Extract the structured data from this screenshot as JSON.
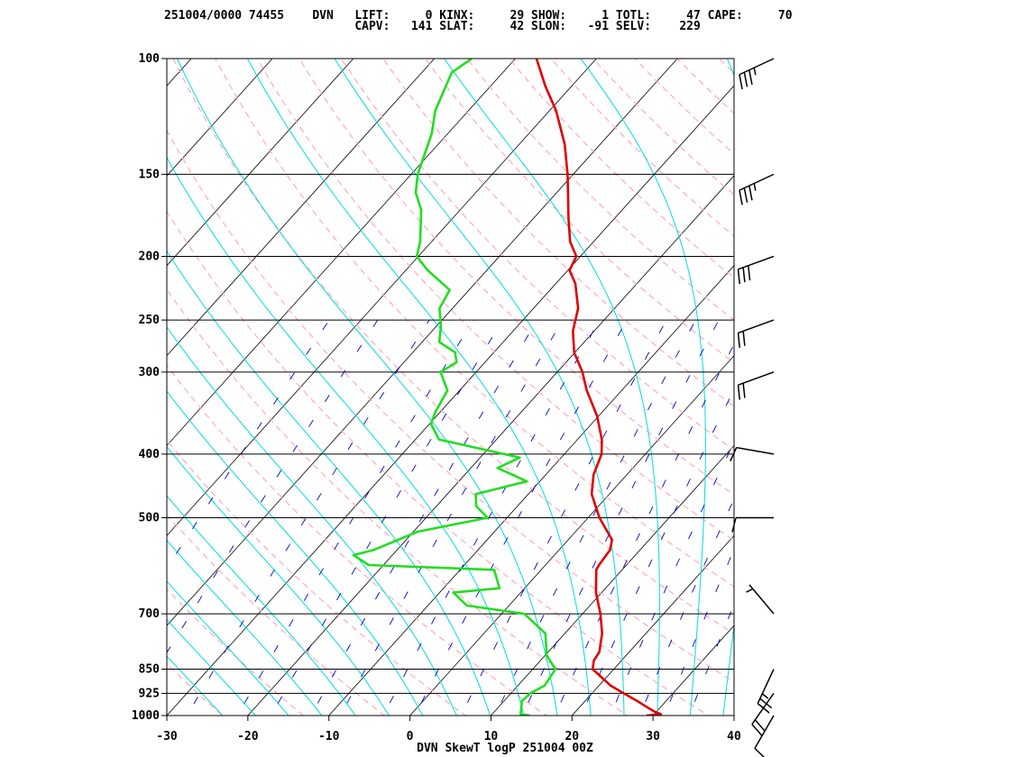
{
  "header": {
    "line1": "251004/0000 74455    DVN   LIFT:     0 KINX:     29 SHOW:     1 TOTL:     47 CAPE:     70",
    "line2": "                           CAPV:   141 SLAT:     42 SLON:   -91 SELV:    229"
  },
  "chart_data": {
    "type": "skewt-logp",
    "title": "DVN SkewT logP 251004 00Z",
    "xlabel": "",
    "ylabel": "",
    "xlim": [
      -30,
      40
    ],
    "ylim": [
      1000,
      100
    ],
    "y_scale": "log",
    "x_ticks": [
      "-30",
      "-20",
      "-10",
      "0",
      "10",
      "20",
      "30",
      "40"
    ],
    "x_tick_values": [
      -30,
      -20,
      -10,
      0,
      10,
      20,
      30,
      40
    ],
    "pressure_levels": [
      "100",
      "150",
      "200",
      "250",
      "300",
      "400",
      "500",
      "700",
      "850",
      "925",
      "1000"
    ],
    "pressure_values": [
      100,
      150,
      200,
      250,
      300,
      400,
      500,
      700,
      850,
      925,
      1000
    ],
    "colors": {
      "temperature": "#e00000",
      "dewpoint": "#22dd22",
      "isotherm": "#000000",
      "dry_adiabat": "#ffb0bf",
      "moist_adiabat": "#00dddd",
      "mixing_ratio": "#0000cc"
    },
    "series": [
      {
        "name": "temperature",
        "points": [
          [
            1000,
            29.2
          ],
          [
            995,
            30.8
          ],
          [
            985,
            29.6
          ],
          [
            950,
            26.4
          ],
          [
            925,
            23.9
          ],
          [
            900,
            21.4
          ],
          [
            850,
            17.4
          ],
          [
            825,
            16.6
          ],
          [
            800,
            16.3
          ],
          [
            750,
            14.6
          ],
          [
            700,
            12.2
          ],
          [
            650,
            9.3
          ],
          [
            600,
            6.8
          ],
          [
            590,
            6.6
          ],
          [
            560,
            6.3
          ],
          [
            540,
            5.4
          ],
          [
            500,
            1.4
          ],
          [
            460,
            -2.2
          ],
          [
            430,
            -4.1
          ],
          [
            400,
            -5.4
          ],
          [
            380,
            -7.0
          ],
          [
            350,
            -10.2
          ],
          [
            320,
            -14.3
          ],
          [
            300,
            -16.9
          ],
          [
            280,
            -20.1
          ],
          [
            260,
            -22.6
          ],
          [
            240,
            -24.5
          ],
          [
            220,
            -27.6
          ],
          [
            210,
            -29.8
          ],
          [
            200,
            -30.5
          ],
          [
            190,
            -32.9
          ],
          [
            175,
            -35.7
          ],
          [
            160,
            -38.6
          ],
          [
            150,
            -40.7
          ],
          [
            135,
            -44.4
          ],
          [
            120,
            -49.2
          ],
          [
            110,
            -53.3
          ],
          [
            100,
            -57.4
          ]
        ]
      },
      {
        "name": "dewpoint",
        "points": [
          [
            1000,
            14.8
          ],
          [
            995,
            13.5
          ],
          [
            950,
            12.2
          ],
          [
            925,
            12.4
          ],
          [
            900,
            13.3
          ],
          [
            850,
            12.8
          ],
          [
            810,
            10.2
          ],
          [
            750,
            7.6
          ],
          [
            700,
            2.8
          ],
          [
            680,
            -5.2
          ],
          [
            650,
            -8.3
          ],
          [
            640,
            -3.1
          ],
          [
            600,
            -5.8
          ],
          [
            590,
            -21.8
          ],
          [
            570,
            -24.8
          ],
          [
            560,
            -22.9
          ],
          [
            525,
            -19.5
          ],
          [
            500,
            -12.4
          ],
          [
            480,
            -15.1
          ],
          [
            460,
            -16.5
          ],
          [
            440,
            -11.6
          ],
          [
            420,
            -16.7
          ],
          [
            405,
            -15.1
          ],
          [
            380,
            -27.1
          ],
          [
            360,
            -29.8
          ],
          [
            345,
            -30.6
          ],
          [
            320,
            -31.5
          ],
          [
            300,
            -34.4
          ],
          [
            290,
            -33.5
          ],
          [
            280,
            -34.8
          ],
          [
            270,
            -37.9
          ],
          [
            255,
            -39.5
          ],
          [
            240,
            -41.6
          ],
          [
            225,
            -42.4
          ],
          [
            210,
            -47.3
          ],
          [
            200,
            -50.2
          ],
          [
            190,
            -51.4
          ],
          [
            170,
            -54.8
          ],
          [
            160,
            -57.4
          ],
          [
            150,
            -59.2
          ],
          [
            130,
            -62.0
          ],
          [
            120,
            -64.1
          ],
          [
            105,
            -66.3
          ],
          [
            100,
            -65.4
          ]
        ]
      }
    ],
    "winds": [
      {
        "p": 1000,
        "dir": 210,
        "spd": 10
      },
      {
        "p": 925,
        "dir": 215,
        "spd": 20
      },
      {
        "p": 850,
        "dir": 205,
        "spd": 25
      },
      {
        "p": 700,
        "dir": 320,
        "spd": 5
      },
      {
        "p": 500,
        "dir": 270,
        "spd": 10
      },
      {
        "p": 400,
        "dir": 280,
        "spd": 10
      },
      {
        "p": 300,
        "dir": 250,
        "spd": 20
      },
      {
        "p": 250,
        "dir": 250,
        "spd": 20
      },
      {
        "p": 200,
        "dir": 250,
        "spd": 30
      },
      {
        "p": 150,
        "dir": 245,
        "spd": 35
      },
      {
        "p": 100,
        "dir": 245,
        "spd": 35
      }
    ]
  }
}
